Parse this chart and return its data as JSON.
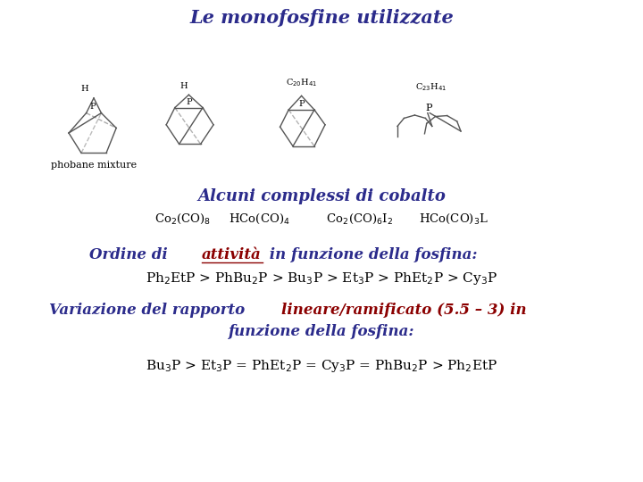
{
  "title": "Le monofosfine utilizzate",
  "title_color": "#2b2b8b",
  "section1": "Alcuni complessi di cobalto",
  "section1_color": "#2b2b8b",
  "complexes_color": "#000000",
  "ordine_color1": "#2b2b8b",
  "ordine_color2": "#8b0000",
  "activity_color": "#000000",
  "variazione_color1": "#2b2b8b",
  "variazione_color2": "#8b0000",
  "ratio_color": "#000000",
  "phobane_label": "phobane mixture",
  "bg_color": "#ffffff",
  "mol_line_color": "#555555"
}
